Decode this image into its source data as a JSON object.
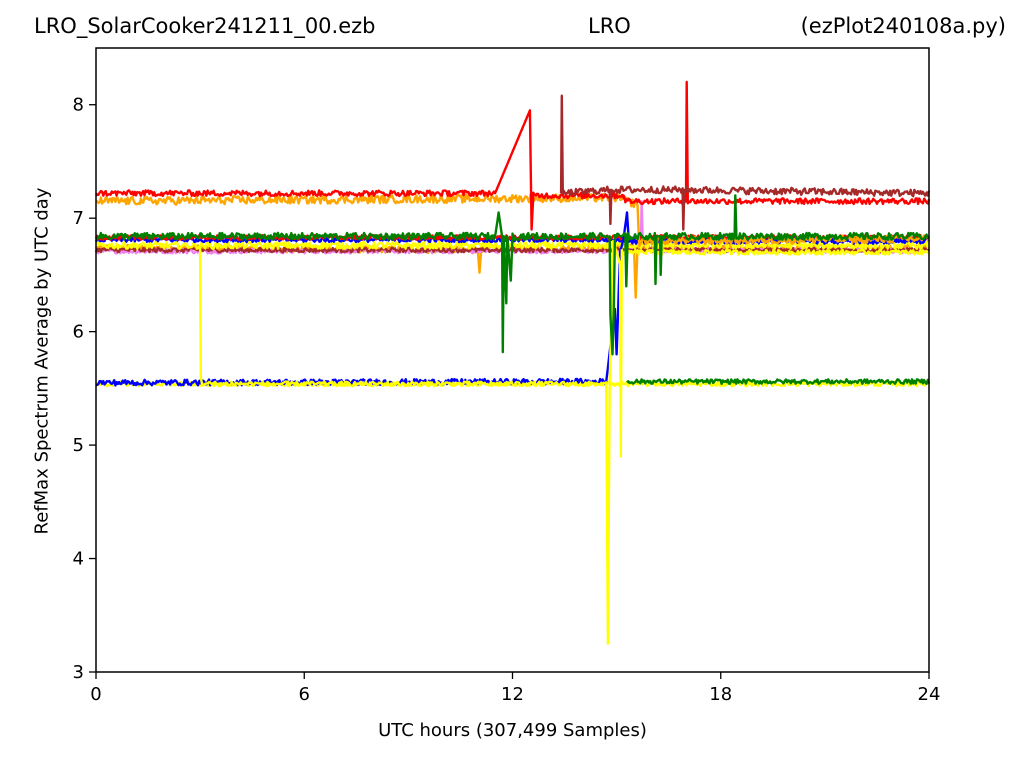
{
  "chart_data": {
    "type": "line",
    "title_left": "LRO_SolarCooker241211_00.ezb",
    "title_center": "LRO",
    "title_right": "(ezPlot240108a.py)",
    "xlabel": "UTC hours  (307,499 Samples)",
    "ylabel": "RefMax Spectrum Average by UTC day",
    "xlim": [
      0,
      24
    ],
    "ylim": [
      3,
      8.5
    ],
    "xticks": [
      0,
      6,
      12,
      18,
      24
    ],
    "yticks": [
      3,
      4,
      5,
      6,
      7,
      8
    ],
    "grid": false,
    "legend": "none",
    "series": [
      {
        "color": "#ffa500",
        "baseline": 6.74,
        "noise": 0.03,
        "points": [
          [
            0,
            6.74
          ],
          [
            11,
            6.72
          ],
          [
            11.05,
            6.52
          ],
          [
            11.1,
            6.73
          ],
          [
            15.5,
            6.74
          ],
          [
            15.55,
            6.3
          ],
          [
            15.6,
            6.74
          ],
          [
            24,
            6.74
          ]
        ]
      },
      {
        "color": "#ee82ee",
        "baseline": 6.71,
        "noise": 0.02,
        "points": [
          [
            0,
            6.71
          ],
          [
            15.7,
            6.71
          ],
          [
            15.72,
            7.15
          ],
          [
            15.76,
            6.72
          ],
          [
            24,
            6.71
          ]
        ]
      },
      {
        "color": "#a52a2a",
        "baseline": 6.72,
        "noise": 0.02,
        "points": [
          [
            0,
            6.72
          ],
          [
            24,
            6.72
          ]
        ]
      },
      {
        "color": "#ffff00",
        "baseline": 6.76,
        "noise": 0.03,
        "points": [
          [
            0,
            6.76
          ],
          [
            24,
            6.76
          ]
        ]
      },
      {
        "color": "#0000ff",
        "baseline": 6.81,
        "noise": 0.02,
        "points": [
          [
            0,
            6.81
          ],
          [
            24,
            6.81
          ]
        ]
      },
      {
        "color": "#ff0000",
        "baseline": 6.83,
        "noise": 0.02,
        "points": [
          [
            0,
            6.83
          ],
          [
            24,
            6.83
          ]
        ]
      },
      {
        "color": "#ffff00",
        "baseline": 5.54,
        "noise": 0.02,
        "points": [
          [
            0,
            5.54
          ],
          [
            24,
            5.54
          ]
        ]
      },
      {
        "color": "#008000",
        "baseline": 5.56,
        "noise": 0.02,
        "points": [
          [
            15.3,
            5.56
          ],
          [
            24,
            5.56
          ]
        ]
      },
      {
        "color": "#0000ff",
        "baseline": 5.55,
        "noise": 0.025,
        "points": [
          [
            0,
            5.55
          ],
          [
            14.7,
            5.56
          ],
          [
            14.95,
            6.2
          ],
          [
            15.0,
            5.8
          ],
          [
            15.1,
            6.7
          ],
          [
            15.2,
            6.82
          ],
          [
            15.3,
            7.05
          ],
          [
            15.35,
            6.8
          ],
          [
            24,
            6.8
          ]
        ]
      },
      {
        "color": "#ffa500",
        "baseline": 7.15,
        "noise": 0.035,
        "points": [
          [
            0,
            7.15
          ],
          [
            15.0,
            7.18
          ],
          [
            15.6,
            7.12
          ],
          [
            15.65,
            6.75
          ],
          [
            15.7,
            6.8
          ],
          [
            24,
            6.82
          ]
        ]
      },
      {
        "color": "#ff0000",
        "baseline": 7.22,
        "noise": 0.025,
        "points": [
          [
            0,
            7.22
          ],
          [
            11.5,
            7.22
          ],
          [
            12.5,
            7.95
          ],
          [
            12.55,
            6.9
          ],
          [
            12.6,
            7.2
          ],
          [
            15.2,
            7.2
          ],
          [
            15.25,
            7.15
          ],
          [
            17.0,
            7.15
          ],
          [
            17.02,
            8.2
          ],
          [
            17.05,
            7.15
          ],
          [
            24,
            7.15
          ]
        ]
      },
      {
        "color": "#a52a2a",
        "baseline": 7.22,
        "noise": 0.03,
        "points": [
          [
            13.4,
            7.22
          ],
          [
            13.42,
            8.08
          ],
          [
            13.45,
            7.22
          ],
          [
            14.8,
            7.25
          ],
          [
            14.82,
            6.95
          ],
          [
            14.85,
            7.25
          ],
          [
            16.9,
            7.25
          ],
          [
            16.92,
            6.9
          ],
          [
            16.95,
            7.25
          ],
          [
            24,
            7.22
          ]
        ]
      },
      {
        "color": "#ffff00",
        "baseline": 6.8,
        "noise": 0.02,
        "points": [
          [
            3.0,
            6.75
          ],
          [
            3.02,
            5.6
          ],
          [
            3.05,
            5.54
          ],
          [
            14.7,
            5.54
          ],
          [
            14.75,
            3.25
          ],
          [
            14.8,
            5.55
          ],
          [
            14.9,
            6.8
          ],
          [
            15.1,
            6.6
          ],
          [
            15.12,
            4.9
          ],
          [
            15.15,
            6.7
          ],
          [
            24,
            6.7
          ]
        ]
      },
      {
        "color": "#008000",
        "baseline": 6.84,
        "noise": 0.03,
        "points": [
          [
            0,
            6.84
          ],
          [
            11.5,
            6.84
          ],
          [
            11.6,
            7.05
          ],
          [
            11.7,
            6.84
          ],
          [
            11.72,
            5.82
          ],
          [
            11.75,
            6.84
          ],
          [
            11.82,
            6.25
          ],
          [
            11.85,
            6.84
          ],
          [
            11.95,
            6.45
          ],
          [
            12.0,
            6.84
          ],
          [
            14.8,
            6.84
          ],
          [
            14.82,
            6.15
          ],
          [
            14.88,
            5.8
          ],
          [
            14.92,
            6.2
          ],
          [
            14.95,
            6.84
          ],
          [
            15.25,
            6.84
          ],
          [
            15.28,
            6.4
          ],
          [
            15.32,
            6.84
          ],
          [
            16.1,
            6.84
          ],
          [
            16.12,
            6.42
          ],
          [
            16.15,
            6.84
          ],
          [
            16.25,
            6.84
          ],
          [
            16.27,
            6.5
          ],
          [
            16.3,
            6.84
          ],
          [
            18.4,
            6.84
          ],
          [
            18.42,
            7.2
          ],
          [
            18.45,
            6.84
          ],
          [
            24,
            6.84
          ]
        ]
      }
    ]
  }
}
